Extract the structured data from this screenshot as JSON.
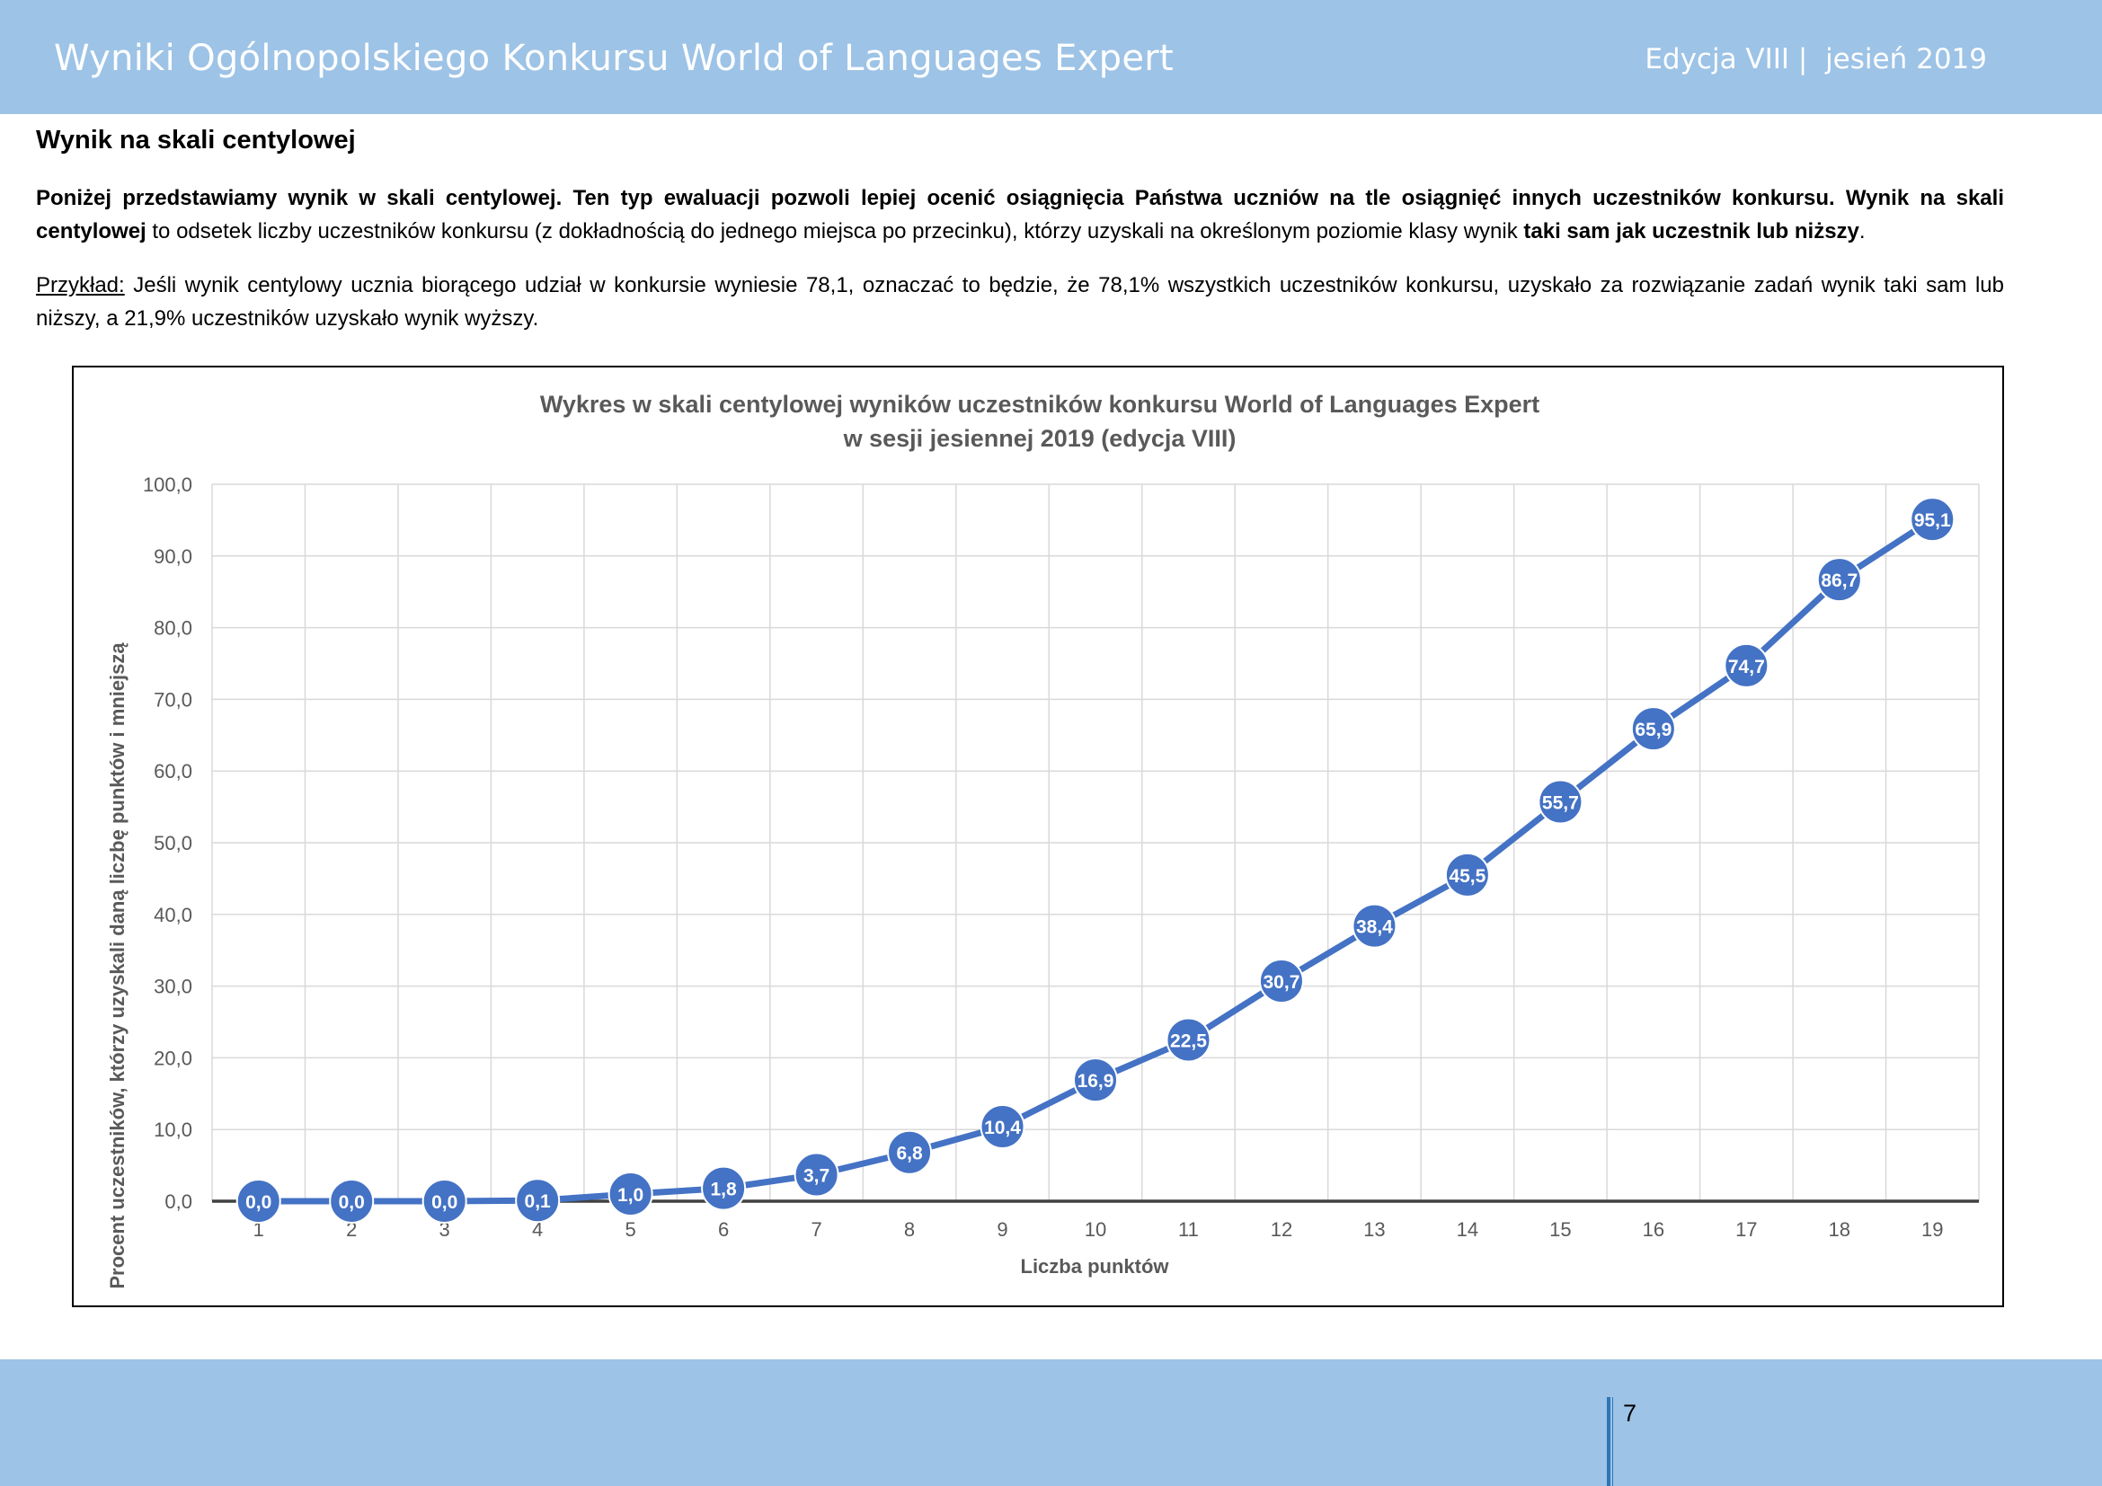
{
  "header": {
    "title": "Wyniki Ogólnopolskiego Konkursu World of Languages Expert",
    "edition": "Edycja VIII |  jesień 2019"
  },
  "section_title": "Wynik na skali centylowej",
  "paragraph1": {
    "bold": "Poniżej przedstawiamy wynik w skali centylowej. Ten typ ewaluacji pozwoli lepiej ocenić osiągnięcia Państwa uczniów na tle osiągnięć innych uczestników konkursu. Wynik na skali centylowej",
    "normal": " to odsetek liczby uczestników konkursu (z dokładnością do jednego miejsca po przecinku), którzy uzyskali na określonym poziomie klasy wynik ",
    "bold_end": "taki sam jak uczestnik lub niższy",
    "end": "."
  },
  "paragraph2": {
    "label": "Przykład:",
    "text": " Jeśli wynik centylowy ucznia biorącego udział w konkursie wyniesie 78,1, oznaczać to będzie, że 78,1% wszystkich uczestników konkursu, uzyskało za rozwiązanie zadań wynik taki sam lub niższy, a 21,9% uczestników uzyskało wynik wyższy."
  },
  "chart_data": {
    "type": "line",
    "title": "Wykres w skali centylowej wyników uczestników konkursu World of Languages Expert",
    "subtitle": "w sesji jesiennej 2019 (edycja VIII)",
    "xlabel": "Liczba punktów",
    "ylabel": "Procent uczestników, którzy uzyskali daną liczbę punktów i mniejszą",
    "categories": [
      "1",
      "2",
      "3",
      "4",
      "5",
      "6",
      "7",
      "8",
      "9",
      "10",
      "11",
      "12",
      "13",
      "14",
      "15",
      "16",
      "17",
      "18",
      "19"
    ],
    "values": [
      0.0,
      0.0,
      0.0,
      0.1,
      1.0,
      1.8,
      3.7,
      6.8,
      10.4,
      16.9,
      22.5,
      30.7,
      38.4,
      45.5,
      55.7,
      65.9,
      74.7,
      86.7,
      95.1
    ],
    "data_labels": [
      "0,0",
      "0,0",
      "0,0",
      "0,1",
      "1,0",
      "1,8",
      "3,7",
      "6,8",
      "10,4",
      "16,9",
      "22,5",
      "30,7",
      "38,4",
      "45,5",
      "55,7",
      "65,9",
      "74,7",
      "86,7",
      "95,1"
    ],
    "yticks": [
      "0,0",
      "10,0",
      "20,0",
      "30,0",
      "40,0",
      "50,0",
      "60,0",
      "70,0",
      "80,0",
      "90,0",
      "100,0"
    ],
    "ylim": [
      0,
      100
    ],
    "grid": true,
    "legend": "none",
    "line_color": "#4472c4"
  },
  "footer": {
    "page_number": "7"
  }
}
